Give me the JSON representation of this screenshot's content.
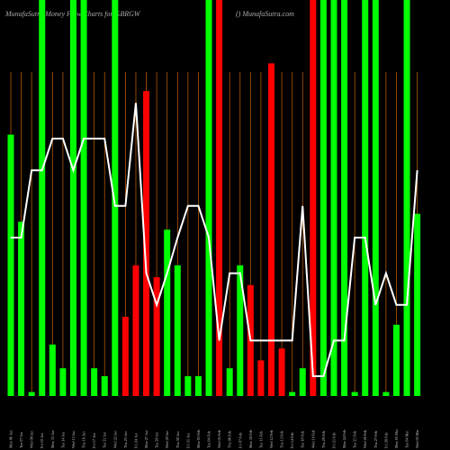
{
  "chart_data": {
    "type": "bar",
    "title": "MunafaSutra  Money Flow  Charts for GBRGW",
    "subtitle": "() MunafaSutra.com",
    "categories": [
      "Mon 06 Jan",
      "Tue 07 Jan",
      "Wed 08 Jan",
      "Fri 10 Jan",
      "Mon 13 Jan",
      "Tue 14 Jan",
      "Wed 15 Jan",
      "Thu 16 Jan",
      "Fri 17 Jan",
      "Tue 21 Jan",
      "Wed 22 Jan",
      "Thu 23 Jan",
      "Fri 24 Jan",
      "Mon 27 Jan",
      "Tue 28 Jan",
      "Wed 29 Jan",
      "Thu 30 Jan",
      "Fri 31 Jan",
      "Mon 03 Feb",
      "Tue 04 Feb",
      "Wed 05 Feb",
      "Thu 06 Feb",
      "Fri 07 Feb",
      "Mon 10 Feb",
      "Tue 11 Feb",
      "Wed 12 Feb",
      "Thu 13 Feb",
      "Fri 14 Feb",
      "Tue 18 Feb",
      "Wed 19 Feb",
      "Thu 20 Feb",
      "Fri 21 Feb",
      "Mon 24 Feb",
      "Tue 25 Feb",
      "Wed 26 Feb",
      "Thu 27 Feb",
      "Fri 28 Feb",
      "Mon 03 Mar",
      "Tue 04 Mar",
      "Wed 05 Mar"
    ],
    "values": [
      66,
      44,
      1,
      100,
      13,
      7,
      100,
      100,
      7,
      5,
      100,
      20,
      33,
      77,
      30,
      42,
      33,
      5,
      5,
      100,
      100,
      7,
      33,
      28,
      9,
      84,
      12,
      1,
      7,
      100,
      100,
      100,
      100,
      1,
      100,
      100,
      1,
      18,
      100,
      46
    ],
    "colors": [
      "#00ff00",
      "#00ff00",
      "#00ff00",
      "#00ff00",
      "#00ff00",
      "#00ff00",
      "#00ff00",
      "#00ff00",
      "#00ff00",
      "#00ff00",
      "#00ff00",
      "#ff0000",
      "#ff0000",
      "#ff0000",
      "#ff0000",
      "#00ff00",
      "#00ff00",
      "#00ff00",
      "#00ff00",
      "#00ff00",
      "#ff0000",
      "#00ff00",
      "#00ff00",
      "#ff0000",
      "#ff0000",
      "#ff0000",
      "#ff0000",
      "#00ff00",
      "#00ff00",
      "#ff0000",
      "#00ff00",
      "#00ff00",
      "#00ff00",
      "#00ff00",
      "#00ff00",
      "#00ff00",
      "#00ff00",
      "#00ff00",
      "#00ff00",
      "#00ff00"
    ],
    "line": {
      "color": "#ffffff",
      "values": [
        40,
        40,
        57,
        57,
        65,
        65,
        57,
        65,
        65,
        65,
        48,
        48,
        74,
        31,
        23,
        31,
        40,
        48,
        48,
        40,
        14,
        31,
        31,
        14,
        14,
        14,
        14,
        14,
        48,
        5,
        5,
        14,
        14,
        40,
        40,
        23,
        31,
        23,
        23,
        57
      ]
    },
    "grid_color": "#b35900",
    "ylim": [
      0,
      100
    ]
  }
}
